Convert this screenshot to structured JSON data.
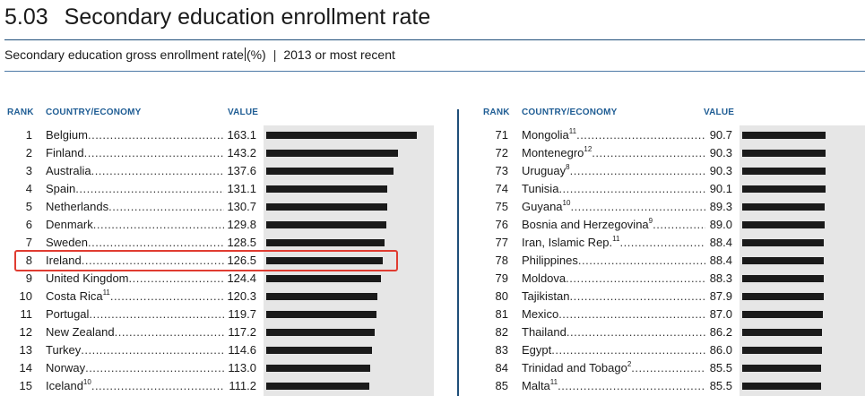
{
  "header": {
    "number": "5.03",
    "title": "Secondary education enrollment rate"
  },
  "subtitle": {
    "indicator": "Secondary education gross enrollment rate",
    "unit": "(%)",
    "separator": "|",
    "period": "2013 or most recent"
  },
  "columns": {
    "rank": "RANK",
    "country": "COUNTRY/ECONOMY",
    "value": "VALUE"
  },
  "highlighted_rank": 8,
  "colors": {
    "bar": "#1a1a1a",
    "bar_background": "#e6e6e6",
    "header_text": "#1f5d94",
    "highlight": "#e03c31",
    "rule": "#1f4e79"
  },
  "chart_data": {
    "type": "bar",
    "orientation": "horizontal",
    "xlim": [
      0,
      170
    ],
    "panels": [
      {
        "rows": [
          {
            "rank": "1",
            "country": "Belgium",
            "note": "",
            "value": 163.1
          },
          {
            "rank": "2",
            "country": "Finland",
            "note": "",
            "value": 143.2
          },
          {
            "rank": "3",
            "country": "Australia",
            "note": "",
            "value": 137.6
          },
          {
            "rank": "4",
            "country": "Spain",
            "note": "",
            "value": 131.1
          },
          {
            "rank": "5",
            "country": "Netherlands",
            "note": "",
            "value": 130.7
          },
          {
            "rank": "6",
            "country": "Denmark",
            "note": "",
            "value": 129.8
          },
          {
            "rank": "7",
            "country": "Sweden",
            "note": "",
            "value": 128.5
          },
          {
            "rank": "8",
            "country": "Ireland",
            "note": "",
            "value": 126.5
          },
          {
            "rank": "9",
            "country": "United Kingdom",
            "note": "",
            "value": 124.4
          },
          {
            "rank": "10",
            "country": "Costa Rica",
            "note": "11",
            "value": 120.3
          },
          {
            "rank": "11",
            "country": "Portugal",
            "note": "",
            "value": 119.7
          },
          {
            "rank": "12",
            "country": "New Zealand",
            "note": "",
            "value": 117.2
          },
          {
            "rank": "13",
            "country": "Turkey",
            "note": "",
            "value": 114.6
          },
          {
            "rank": "14",
            "country": "Norway",
            "note": "",
            "value": 113.0
          },
          {
            "rank": "15",
            "country": "Iceland",
            "note": "10",
            "value": 111.2
          }
        ]
      },
      {
        "rows": [
          {
            "rank": "71",
            "country": "Mongolia",
            "note": "11",
            "value": 90.7
          },
          {
            "rank": "72",
            "country": "Montenegro",
            "note": "12",
            "value": 90.3
          },
          {
            "rank": "73",
            "country": "Uruguay",
            "note": "8",
            "value": 90.3
          },
          {
            "rank": "74",
            "country": "Tunisia",
            "note": "",
            "value": 90.1
          },
          {
            "rank": "75",
            "country": "Guyana",
            "note": "10",
            "value": 89.3
          },
          {
            "rank": "76",
            "country": "Bosnia and Herzegovina",
            "note": "9",
            "value": 89.0
          },
          {
            "rank": "77",
            "country": "Iran, Islamic Rep.",
            "note": "11",
            "value": 88.4
          },
          {
            "rank": "78",
            "country": "Philippines",
            "note": "",
            "value": 88.4
          },
          {
            "rank": "79",
            "country": "Moldova",
            "note": "",
            "value": 88.3
          },
          {
            "rank": "80",
            "country": "Tajikistan",
            "note": "",
            "value": 87.9
          },
          {
            "rank": "81",
            "country": "Mexico",
            "note": "",
            "value": 87.0
          },
          {
            "rank": "82",
            "country": "Thailand",
            "note": "",
            "value": 86.2
          },
          {
            "rank": "83",
            "country": "Egypt",
            "note": "",
            "value": 86.0
          },
          {
            "rank": "84",
            "country": "Trinidad and Tobago",
            "note": "2",
            "value": 85.5
          },
          {
            "rank": "85",
            "country": "Malta",
            "note": "11",
            "value": 85.5
          }
        ]
      }
    ]
  }
}
